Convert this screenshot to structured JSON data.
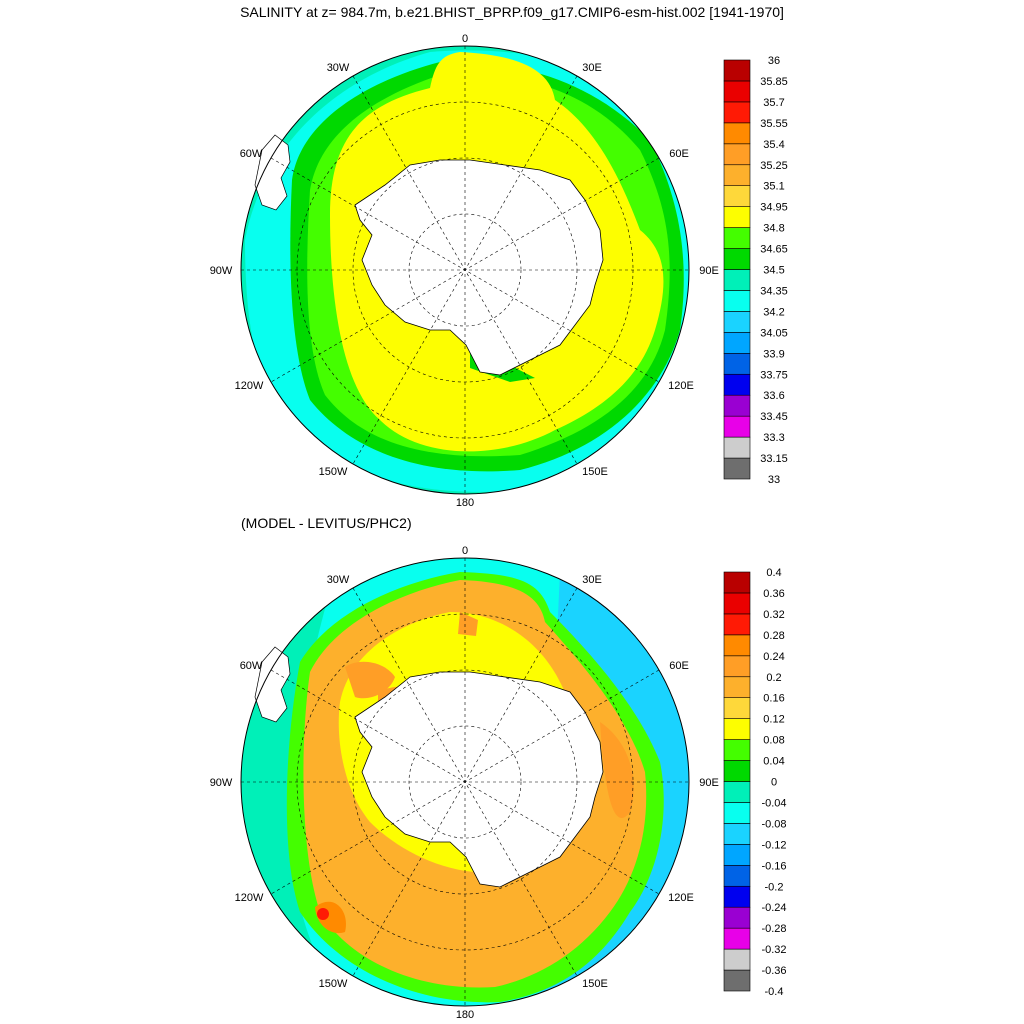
{
  "top": {
    "title": "SALINITY at z= 984.7m, b.e21.BHIST_BPRP.f09_g17.CMIP6-esm-hist.002 [1941-1970]",
    "colorbar": {
      "colors": [
        "#6e6e6e",
        "#cdcdcd",
        "#e800e8",
        "#9a00d2",
        "#0000ef",
        "#0063e6",
        "#00a6ff",
        "#1ad3ff",
        "#08ffef",
        "#00f0b8",
        "#00d900",
        "#44fe00",
        "#fdfe00",
        "#fed83a",
        "#fdb02c",
        "#ff9e26",
        "#ff8a00",
        "#ff1a05",
        "#ea0000",
        "#b90000"
      ],
      "ticks": [
        "33",
        "33.15",
        "33.3",
        "33.45",
        "33.6",
        "33.75",
        "33.9",
        "34.05",
        "34.2",
        "34.35",
        "34.5",
        "34.65",
        "34.8",
        "34.95",
        "35.1",
        "35.25",
        "35.4",
        "35.55",
        "35.7",
        "35.85",
        "36"
      ]
    }
  },
  "bottom": {
    "title": "(MODEL - LEVITUS/PHC2)",
    "colorbar": {
      "colors": [
        "#6e6e6e",
        "#cdcdcd",
        "#e800e8",
        "#9a00d2",
        "#0000ef",
        "#0063e6",
        "#00a6ff",
        "#1ad3ff",
        "#08ffef",
        "#00f0b8",
        "#00d900",
        "#44fe00",
        "#fdfe00",
        "#fed83a",
        "#fdb02c",
        "#ff9e26",
        "#ff8a00",
        "#ff1a05",
        "#ea0000",
        "#b90000"
      ],
      "ticks": [
        "-0.4",
        "-0.36",
        "-0.32",
        "-0.28",
        "-0.24",
        "-0.2",
        "-0.16",
        "-0.12",
        "-0.08",
        "-0.04",
        "0",
        "0.04",
        "0.08",
        "0.12",
        "0.16",
        "0.2",
        "0.24",
        "0.28",
        "0.32",
        "0.36",
        "0.4"
      ]
    }
  },
  "lon_labels": {
    "l0": "0",
    "l30e": "30E",
    "l60e": "60E",
    "l90e": "90E",
    "l120e": "120E",
    "l150e": "150E",
    "l180": "180",
    "l150w": "150W",
    "l120w": "120W",
    "l90w": "90W",
    "l60w": "60W",
    "l30w": "30W"
  },
  "colors": {
    "land": "#ffffff",
    "coast": "#000000",
    "grid": "#000000"
  }
}
